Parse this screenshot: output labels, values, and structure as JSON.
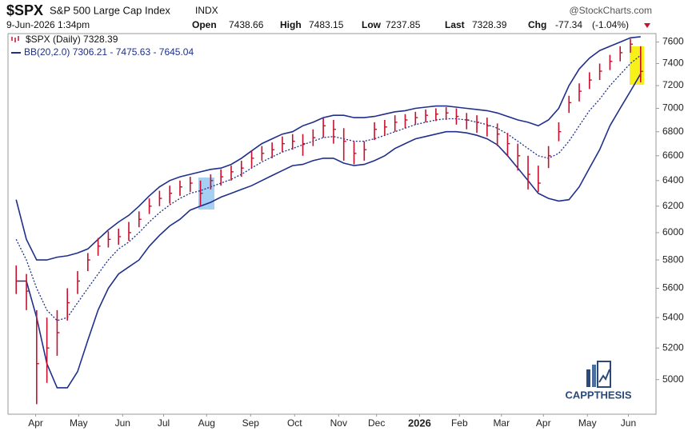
{
  "header": {
    "symbol": "$SPX",
    "name": "S&P 500 Large Cap Index",
    "exchange": "INDX",
    "source": "@StockCharts.com",
    "date": "9-Jun-2026 1:34pm",
    "open_label": "Open",
    "open": "7438.66",
    "high_label": "High",
    "high": "7483.15",
    "low_label": "Low",
    "low": "7237.85",
    "last_label": "Last",
    "last": "7328.39",
    "chg_label": "Chg",
    "chg": "-77.34",
    "chg_pct": "(-1.04%)",
    "logo": "CAPPTHESIS"
  },
  "chart_data": {
    "type": "ohlc",
    "log_scale": true,
    "grid": false,
    "xlim": [
      -0.8,
      62.5
    ],
    "ylim": [
      4790,
      7680
    ],
    "xticks": [
      {
        "value": 1.9,
        "label": "Apr"
      },
      {
        "value": 6.1,
        "label": "May"
      },
      {
        "value": 10.4,
        "label": "Jun"
      },
      {
        "value": 14.4,
        "label": "Jul"
      },
      {
        "value": 18.6,
        "label": "Aug"
      },
      {
        "value": 22.9,
        "label": "Sep"
      },
      {
        "value": 27.2,
        "label": "Oct"
      },
      {
        "value": 31.5,
        "label": "Nov"
      },
      {
        "value": 35.2,
        "label": "Dec"
      },
      {
        "value": 39.4,
        "label": "2026"
      },
      {
        "value": 43.3,
        "label": "Feb"
      },
      {
        "value": 47.4,
        "label": "Mar"
      },
      {
        "value": 51.5,
        "label": "Apr"
      },
      {
        "value": 55.8,
        "label": "May"
      },
      {
        "value": 59.8,
        "label": "Jun"
      }
    ],
    "yticks": [
      5000,
      5200,
      5400,
      5600,
      5800,
      6000,
      6200,
      6400,
      6600,
      6800,
      7000,
      7200,
      7400,
      7600
    ],
    "series": [
      {
        "name": "$SPX (Daily) 7328.39",
        "color": "#c8102e",
        "high": [
          5760,
          5700,
          5450,
          5400,
          5450,
          5600,
          5720,
          5850,
          5960,
          6010,
          6030,
          6080,
          6160,
          6260,
          6320,
          6360,
          6400,
          6430,
          6400,
          6450,
          6490,
          6520,
          6560,
          6640,
          6680,
          6710,
          6760,
          6780,
          6780,
          6820,
          6920,
          6900,
          6830,
          6720,
          6720,
          6880,
          6900,
          6940,
          6950,
          6970,
          6990,
          7000,
          7010,
          7000,
          6960,
          6940,
          6920,
          6870,
          6790,
          6700,
          6600,
          6520,
          6680,
          6880,
          7110,
          7220,
          7320,
          7400,
          7480,
          7560,
          7630,
          7560
        ],
        "low": [
          5560,
          5450,
          4850,
          4980,
          5150,
          5380,
          5560,
          5720,
          5830,
          5890,
          5910,
          5940,
          6040,
          6140,
          6200,
          6220,
          6280,
          6310,
          6200,
          6330,
          6360,
          6400,
          6430,
          6500,
          6560,
          6580,
          6630,
          6650,
          6600,
          6680,
          6750,
          6700,
          6560,
          6530,
          6560,
          6730,
          6770,
          6800,
          6830,
          6860,
          6880,
          6890,
          6900,
          6860,
          6820,
          6790,
          6760,
          6680,
          6600,
          6480,
          6330,
          6310,
          6500,
          6720,
          6960,
          7060,
          7170,
          7250,
          7340,
          7420,
          7500,
          7230
        ],
        "close": [
          5650,
          5580,
          5100,
          5200,
          5300,
          5500,
          5650,
          5800,
          5900,
          5950,
          5970,
          6000,
          6100,
          6200,
          6260,
          6300,
          6350,
          6380,
          6300,
          6400,
          6430,
          6470,
          6500,
          6580,
          6620,
          6650,
          6700,
          6720,
          6700,
          6750,
          6850,
          6820,
          6720,
          6620,
          6650,
          6820,
          6840,
          6880,
          6900,
          6920,
          6940,
          6950,
          6960,
          6930,
          6900,
          6880,
          6850,
          6780,
          6700,
          6600,
          6450,
          6380,
          6600,
          6800,
          7050,
          7150,
          7250,
          7330,
          7420,
          7500,
          7580,
          7328
        ]
      },
      {
        "name": "BB(20,2.0) 7306.21 - 7475.63 - 7645.04",
        "color": "#1f2f8a",
        "upper": [
          6250,
          5950,
          5800,
          5800,
          5820,
          5830,
          5850,
          5880,
          5950,
          6020,
          6080,
          6130,
          6200,
          6280,
          6350,
          6400,
          6430,
          6450,
          6470,
          6490,
          6500,
          6530,
          6580,
          6640,
          6700,
          6740,
          6780,
          6800,
          6850,
          6880,
          6920,
          6940,
          6940,
          6920,
          6920,
          6930,
          6950,
          6970,
          6980,
          7000,
          7010,
          7020,
          7020,
          7010,
          7000,
          6990,
          6980,
          6960,
          6930,
          6900,
          6880,
          6850,
          6900,
          7000,
          7200,
          7350,
          7450,
          7520,
          7560,
          7600,
          7640,
          7650
        ],
        "middle": [
          5950,
          5800,
          5600,
          5450,
          5380,
          5400,
          5500,
          5600,
          5700,
          5800,
          5880,
          5930,
          6000,
          6080,
          6150,
          6210,
          6260,
          6300,
          6320,
          6350,
          6380,
          6410,
          6450,
          6500,
          6550,
          6590,
          6630,
          6660,
          6690,
          6720,
          6750,
          6760,
          6740,
          6720,
          6720,
          6740,
          6770,
          6800,
          6830,
          6860,
          6880,
          6900,
          6910,
          6910,
          6900,
          6880,
          6860,
          6830,
          6780,
          6720,
          6660,
          6600,
          6580,
          6620,
          6720,
          6850,
          6980,
          7080,
          7200,
          7300,
          7400,
          7476
        ],
        "lower": [
          5650,
          5650,
          5400,
          5100,
          4950,
          4950,
          5050,
          5250,
          5450,
          5600,
          5700,
          5750,
          5800,
          5900,
          5980,
          6050,
          6100,
          6170,
          6200,
          6230,
          6270,
          6300,
          6330,
          6360,
          6400,
          6440,
          6480,
          6520,
          6530,
          6560,
          6580,
          6580,
          6540,
          6520,
          6530,
          6560,
          6600,
          6660,
          6700,
          6740,
          6760,
          6780,
          6800,
          6800,
          6790,
          6770,
          6740,
          6690,
          6600,
          6500,
          6400,
          6300,
          6260,
          6240,
          6250,
          6350,
          6500,
          6650,
          6850,
          7000,
          7150,
          7306
        ]
      }
    ]
  }
}
